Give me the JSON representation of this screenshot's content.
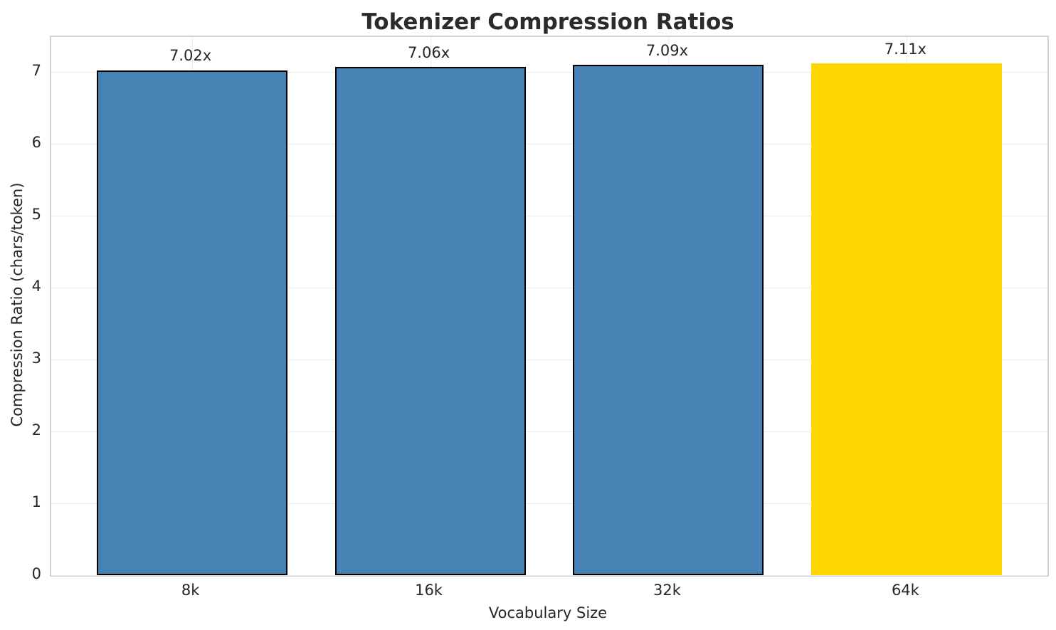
{
  "chart_data": {
    "type": "bar",
    "title": "Tokenizer Compression Ratios",
    "xlabel": "Vocabulary Size",
    "ylabel": "Compression Ratio (chars/token)",
    "categories": [
      "8k",
      "16k",
      "32k",
      "64k"
    ],
    "values": [
      7.02,
      7.06,
      7.09,
      7.11
    ],
    "bar_labels": [
      "7.02x",
      "7.06x",
      "7.09x",
      "7.11x"
    ],
    "bar_colors": [
      "#4682B4",
      "#4682B4",
      "#4682B4",
      "#FFD700"
    ],
    "bar_edge_colors": [
      "#000000",
      "#000000",
      "#000000",
      "none"
    ],
    "yticks": [
      0,
      1,
      2,
      3,
      4,
      5,
      6,
      7
    ],
    "ylim": [
      0,
      7.48
    ],
    "grid": true,
    "legend": "none",
    "colors": {
      "default_bar": "#4682B4",
      "highlight_bar": "#FFD700",
      "bar_edge": "#000000",
      "grid": "#ebebeb",
      "spine": "#d0d0d0",
      "text": "#262626",
      "title_text": "#2b2b2b"
    }
  }
}
